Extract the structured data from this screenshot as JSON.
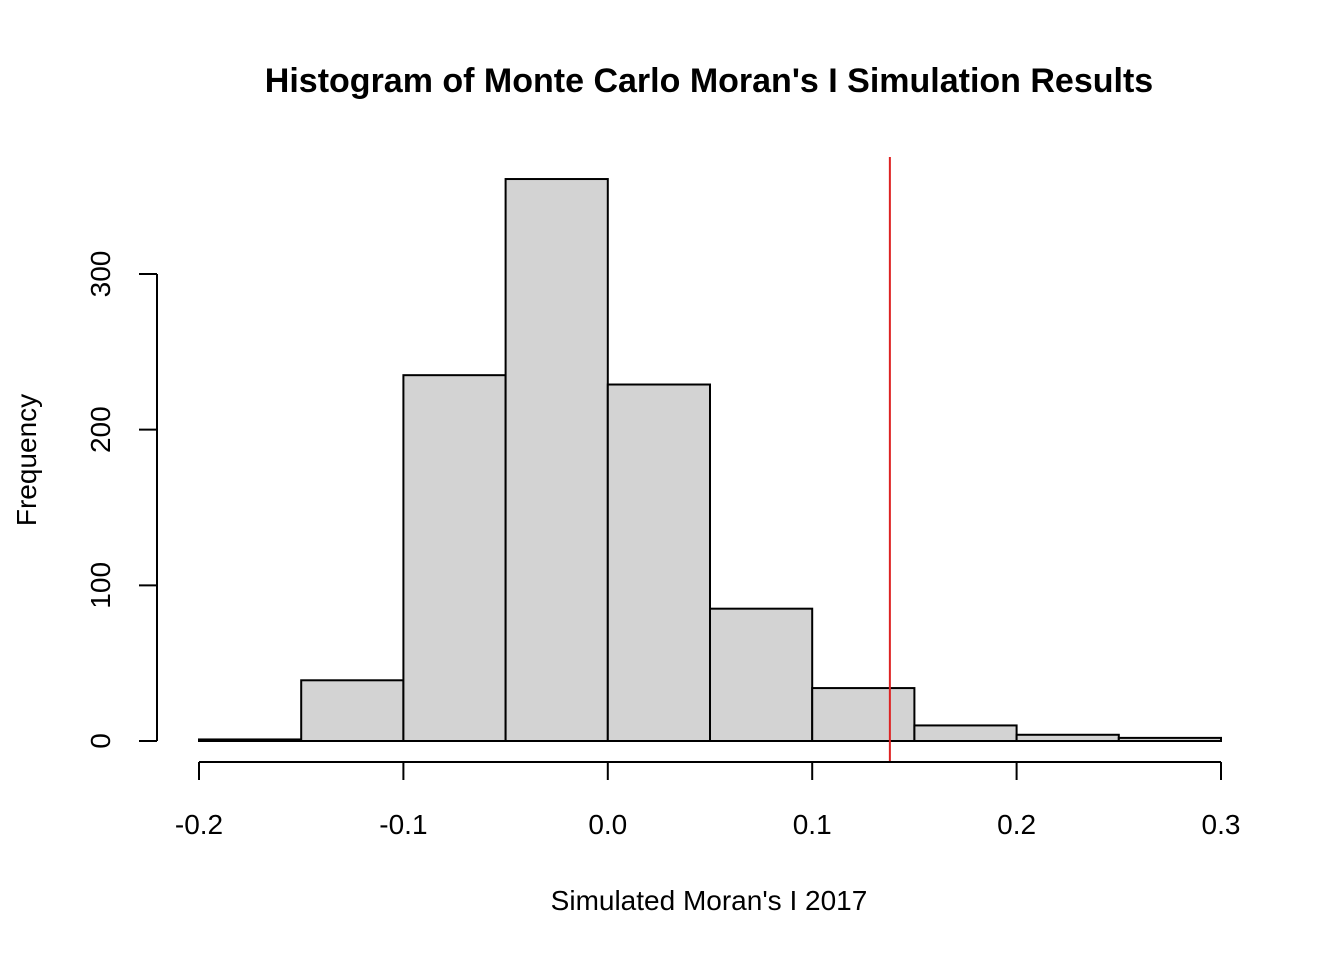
{
  "chart_data": {
    "type": "bar",
    "title": "Histogram of Monte Carlo Moran's I Simulation Results",
    "xlabel": "Simulated Moran's I 2017",
    "ylabel": "Frequency",
    "xlim": [
      -0.2,
      0.3
    ],
    "ylim": [
      0,
      360
    ],
    "x_ticks": [
      -0.2,
      -0.1,
      0.0,
      0.1,
      0.2,
      0.3
    ],
    "x_tick_labels": [
      "-0.2",
      "-0.1",
      "0.0",
      "0.1",
      "0.2",
      "0.3"
    ],
    "y_ticks": [
      0,
      100,
      200,
      300
    ],
    "y_tick_labels": [
      "0",
      "100",
      "200",
      "300"
    ],
    "bins": [
      {
        "start": -0.2,
        "end": -0.15,
        "count": 1
      },
      {
        "start": -0.15,
        "end": -0.1,
        "count": 39
      },
      {
        "start": -0.1,
        "end": -0.05,
        "count": 235
      },
      {
        "start": -0.05,
        "end": 0.0,
        "count": 361
      },
      {
        "start": 0.0,
        "end": 0.05,
        "count": 229
      },
      {
        "start": 0.05,
        "end": 0.1,
        "count": 85
      },
      {
        "start": 0.1,
        "end": 0.15,
        "count": 34
      },
      {
        "start": 0.15,
        "end": 0.2,
        "count": 10
      },
      {
        "start": 0.2,
        "end": 0.25,
        "count": 4
      },
      {
        "start": 0.25,
        "end": 0.3,
        "count": 2
      }
    ],
    "reference_line": {
      "x": 0.138,
      "color": "#dd2222"
    },
    "bar_fill": "#d3d3d3",
    "grid": false
  }
}
